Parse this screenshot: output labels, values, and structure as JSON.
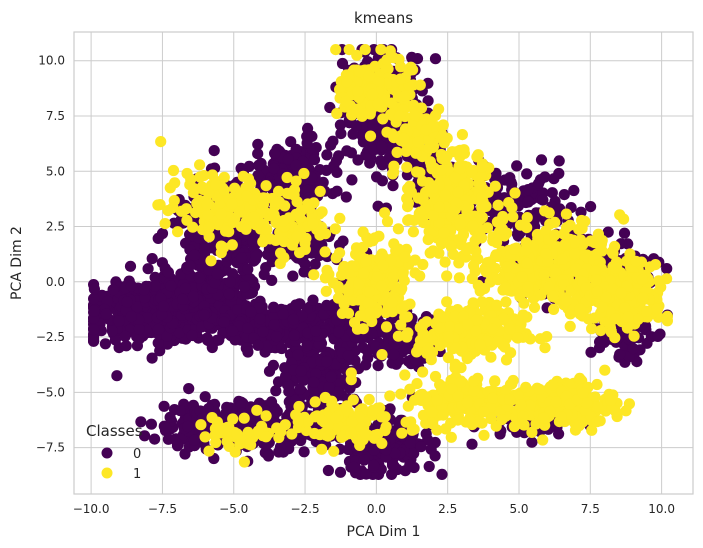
{
  "chart_data": {
    "type": "scatter",
    "title": "kmeans",
    "xlabel": "PCA Dim 1",
    "ylabel": "PCA Dim 2",
    "xlim": [
      -10.6,
      11.1
    ],
    "ylim": [
      -9.6,
      11.3
    ],
    "xticks": [
      -10.0,
      -7.5,
      -5.0,
      -2.5,
      0.0,
      2.5,
      5.0,
      7.5,
      10.0
    ],
    "yticks": [
      -7.5,
      -5.0,
      -2.5,
      0.0,
      2.5,
      5.0,
      7.5,
      10.0
    ],
    "xtick_labels": [
      "−10.0",
      "−7.5",
      "−5.0",
      "−2.5",
      "0.0",
      "2.5",
      "5.0",
      "7.5",
      "10.0"
    ],
    "ytick_labels": [
      "−7.5",
      "−5.0",
      "−2.5",
      "0.0",
      "2.5",
      "5.0",
      "7.5",
      "10.0"
    ],
    "grid": true,
    "legend": {
      "title": "Classes",
      "placement": "lower-left"
    },
    "series": [
      {
        "name": "0",
        "color": "#440154",
        "regions": [
          {
            "cx": -7.6,
            "cy": -1.4,
            "rx": 2.2,
            "ry": 1.1,
            "n": 650
          },
          {
            "cx": -6.3,
            "cy": -0.6,
            "rx": 1.6,
            "ry": 1.0,
            "n": 300
          },
          {
            "cx": -5.3,
            "cy": 2.3,
            "rx": 1.7,
            "ry": 2.0,
            "n": 260
          },
          {
            "cx": -3.0,
            "cy": 4.5,
            "rx": 1.3,
            "ry": 1.6,
            "n": 200
          },
          {
            "cx": -2.7,
            "cy": 1.8,
            "rx": 1.0,
            "ry": 1.0,
            "n": 160
          },
          {
            "cx": -3.5,
            "cy": -2.1,
            "rx": 2.1,
            "ry": 0.9,
            "n": 280
          },
          {
            "cx": -4.8,
            "cy": -6.5,
            "rx": 2.6,
            "ry": 1.0,
            "n": 320
          },
          {
            "cx": -2.2,
            "cy": -4.3,
            "rx": 1.3,
            "ry": 1.8,
            "n": 200
          },
          {
            "cx": 0.3,
            "cy": 7.8,
            "rx": 1.3,
            "ry": 2.4,
            "n": 280
          },
          {
            "cx": -0.4,
            "cy": -1.6,
            "rx": 1.1,
            "ry": 1.6,
            "n": 160
          },
          {
            "cx": 1.1,
            "cy": -2.7,
            "rx": 0.9,
            "ry": 1.0,
            "n": 110
          },
          {
            "cx": 0.2,
            "cy": -7.4,
            "rx": 1.6,
            "ry": 1.2,
            "n": 220
          },
          {
            "cx": 2.1,
            "cy": 4.6,
            "rx": 0.9,
            "ry": 1.5,
            "n": 90
          },
          {
            "cx": 4.8,
            "cy": 3.6,
            "rx": 2.0,
            "ry": 1.4,
            "n": 130
          },
          {
            "cx": 6.8,
            "cy": 0.8,
            "rx": 1.8,
            "ry": 1.5,
            "n": 110
          },
          {
            "cx": 5.4,
            "cy": -6.0,
            "rx": 1.4,
            "ry": 0.8,
            "n": 90
          },
          {
            "cx": 8.5,
            "cy": -2.3,
            "rx": 1.0,
            "ry": 1.2,
            "n": 70
          },
          {
            "cx": 8.9,
            "cy": 0.6,
            "rx": 0.9,
            "ry": 0.9,
            "n": 50
          }
        ]
      },
      {
        "name": "1",
        "color": "#fde725",
        "regions": [
          {
            "cx": 0.0,
            "cy": 8.7,
            "rx": 1.1,
            "ry": 1.4,
            "n": 150
          },
          {
            "cx": -0.2,
            "cy": 0.0,
            "rx": 1.2,
            "ry": 1.6,
            "n": 220
          },
          {
            "cx": 2.6,
            "cy": 3.6,
            "rx": 1.5,
            "ry": 2.2,
            "n": 260
          },
          {
            "cx": 6.2,
            "cy": 0.8,
            "rx": 2.2,
            "ry": 1.7,
            "n": 320
          },
          {
            "cx": 8.6,
            "cy": -0.8,
            "rx": 1.5,
            "ry": 1.3,
            "n": 230
          },
          {
            "cx": 3.3,
            "cy": -2.3,
            "rx": 1.7,
            "ry": 1.2,
            "n": 220
          },
          {
            "cx": 3.4,
            "cy": -5.4,
            "rx": 2.3,
            "ry": 1.1,
            "n": 230
          },
          {
            "cx": 6.7,
            "cy": -5.5,
            "rx": 1.5,
            "ry": 1.0,
            "n": 150
          },
          {
            "cx": -5.6,
            "cy": 3.4,
            "rx": 1.8,
            "ry": 1.5,
            "n": 130
          },
          {
            "cx": -1.2,
            "cy": -6.4,
            "rx": 1.6,
            "ry": 1.0,
            "n": 110
          },
          {
            "cx": -3.0,
            "cy": 2.8,
            "rx": 1.3,
            "ry": 1.6,
            "n": 90
          },
          {
            "cx": -4.7,
            "cy": -6.8,
            "rx": 1.4,
            "ry": 0.8,
            "n": 50
          },
          {
            "cx": 1.6,
            "cy": 6.8,
            "rx": 1.0,
            "ry": 1.0,
            "n": 60
          }
        ]
      }
    ]
  }
}
